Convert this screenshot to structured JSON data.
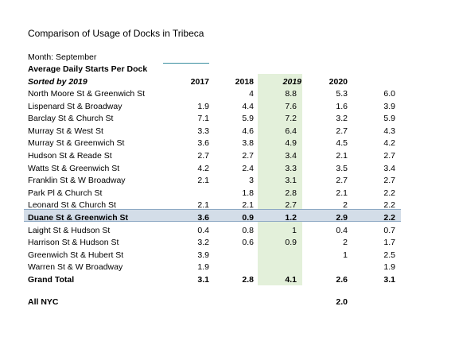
{
  "title": "Comparison of Usage of Docks in Tribeca",
  "month": "Month: September",
  "subtitle": "Average Daily Starts Per Dock",
  "sorted_by": "Sorted by 2019",
  "headers": [
    "2017",
    "2018",
    "2019",
    "2020",
    ""
  ],
  "rows": [
    {
      "name": "North Moore St & Greenwich St",
      "v": [
        "",
        "4",
        "8.8",
        "5.3",
        "6.0"
      ]
    },
    {
      "name": "Lispenard St & Broadway",
      "v": [
        "1.9",
        "4.4",
        "7.6",
        "1.6",
        "3.9"
      ]
    },
    {
      "name": "Barclay St & Church St",
      "v": [
        "7.1",
        "5.9",
        "7.2",
        "3.2",
        "5.9"
      ]
    },
    {
      "name": "Murray St & West St",
      "v": [
        "3.3",
        "4.6",
        "6.4",
        "2.7",
        "4.3"
      ]
    },
    {
      "name": "Murray St & Greenwich St",
      "v": [
        "3.6",
        "3.8",
        "4.9",
        "4.5",
        "4.2"
      ]
    },
    {
      "name": "Hudson St & Reade St",
      "v": [
        "2.7",
        "2.7",
        "3.4",
        "2.1",
        "2.7"
      ]
    },
    {
      "name": "Watts St & Greenwich St",
      "v": [
        "4.2",
        "2.4",
        "3.3",
        "3.5",
        "3.4"
      ]
    },
    {
      "name": "Franklin St & W Broadway",
      "v": [
        "2.1",
        "3",
        "3.1",
        "2.7",
        "2.7"
      ]
    },
    {
      "name": "Park Pl & Church St",
      "v": [
        "",
        "1.8",
        "2.8",
        "2.1",
        "2.2"
      ]
    },
    {
      "name": "Leonard St & Church St",
      "v": [
        "2.1",
        "2.1",
        "2.7",
        "2",
        "2.2"
      ]
    },
    {
      "name": "Duane St & Greenwich St",
      "v": [
        "3.6",
        "0.9",
        "1.2",
        "2.9",
        "2.2"
      ]
    },
    {
      "name": "Laight St & Hudson St",
      "v": [
        "0.4",
        "0.8",
        "1",
        "0.4",
        "0.7"
      ]
    },
    {
      "name": "Harrison St & Hudson St",
      "v": [
        "3.2",
        "0.6",
        "0.9",
        "2",
        "1.7"
      ]
    },
    {
      "name": "Greenwich St & Hubert St",
      "v": [
        "3.9",
        "",
        "",
        "1",
        "2.5"
      ]
    },
    {
      "name": "Warren St & W Broadway",
      "v": [
        "1.9",
        "",
        "",
        "",
        "1.9"
      ]
    },
    {
      "name": "Grand Total",
      "v": [
        "3.1",
        "2.8",
        "4.1",
        "2.6",
        "3.1"
      ]
    }
  ],
  "all_nyc": {
    "label": "All NYC",
    "value": "2.0"
  }
}
